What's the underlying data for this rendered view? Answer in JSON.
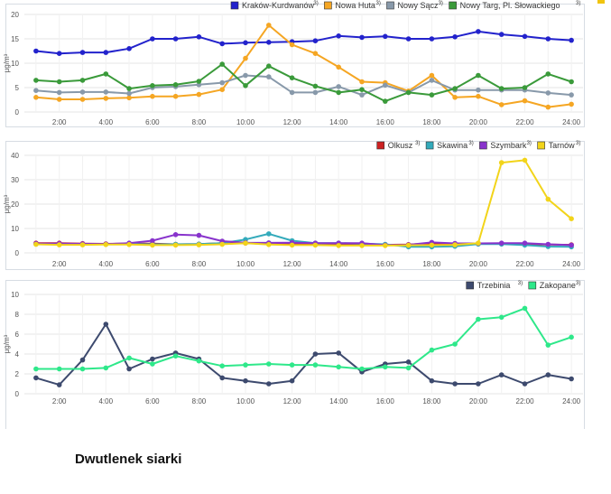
{
  "caption": "Dwutlenek siarki",
  "x_ticks": [
    "2:00",
    "4:00",
    "6:00",
    "8:00",
    "10:00",
    "12:00",
    "14:00",
    "16:00",
    "18:00",
    "20:00",
    "22:00",
    "24:00"
  ],
  "chart_data": [
    {
      "type": "line",
      "ylabel": "µg/m³",
      "ylim": [
        0,
        20
      ],
      "yticks": [
        0,
        5,
        10,
        15,
        20
      ],
      "xlim": [
        0.5,
        24.5
      ],
      "legend": "top-right",
      "x": [
        1,
        2,
        3,
        4,
        5,
        6,
        7,
        8,
        9,
        10,
        11,
        12,
        13,
        14,
        15,
        16,
        17,
        18,
        19,
        20,
        21,
        22,
        23,
        24
      ],
      "series": [
        {
          "name": "Kraków-Kurdwanów",
          "sup": "3)",
          "color": "#2222cc",
          "values": [
            12.5,
            12.0,
            12.2,
            12.2,
            13.0,
            15.0,
            15.0,
            15.4,
            14.0,
            14.2,
            14.3,
            14.4,
            14.6,
            15.6,
            15.3,
            15.5,
            15.0,
            15.0,
            15.4,
            16.5,
            15.9,
            15.5,
            15.0,
            14.7
          ]
        },
        {
          "name": "Nowa Huta",
          "sup": "3)",
          "color": "#f5a623",
          "values": [
            3.0,
            2.6,
            2.6,
            2.8,
            2.9,
            3.2,
            3.2,
            3.6,
            4.6,
            11.0,
            17.8,
            13.8,
            12.0,
            9.2,
            6.2,
            6.0,
            4.3,
            7.5,
            3.0,
            3.2,
            1.5,
            2.3,
            1.0,
            1.6
          ]
        },
        {
          "name": "Nowy Sącz",
          "sup": "3)",
          "color": "#8899aa",
          "values": [
            4.4,
            4.0,
            4.1,
            4.1,
            3.8,
            5.0,
            5.2,
            5.6,
            6.0,
            7.5,
            7.2,
            4.0,
            4.0,
            5.2,
            3.5,
            5.5,
            4.0,
            6.5,
            4.5,
            4.5,
            4.5,
            4.5,
            3.9,
            3.5
          ]
        },
        {
          "name": "Nowy Targ, Pl. Słowackiego",
          "sup": "3)",
          "color": "#3a9a3a",
          "values": [
            6.5,
            6.2,
            6.5,
            7.8,
            4.8,
            5.4,
            5.6,
            6.3,
            9.8,
            5.4,
            9.4,
            7.0,
            5.3,
            4.0,
            4.6,
            2.2,
            4.0,
            3.5,
            4.8,
            7.5,
            4.8,
            5.0,
            7.8,
            6.2
          ]
        }
      ]
    },
    {
      "type": "line",
      "ylabel": "µg/m³",
      "ylim": [
        0,
        40
      ],
      "yticks": [
        0,
        10,
        20,
        30,
        40
      ],
      "xlim": [
        0.5,
        24.5
      ],
      "legend": "top-right",
      "x": [
        1,
        2,
        3,
        4,
        5,
        6,
        7,
        8,
        9,
        10,
        11,
        12,
        13,
        14,
        15,
        16,
        17,
        18,
        19,
        20,
        21,
        22,
        23,
        24
      ],
      "series": [
        {
          "name": "Olkusz",
          "sup": "3)",
          "color": "#cc2222",
          "values": [
            4.0,
            4.0,
            3.8,
            3.7,
            3.8,
            3.8,
            3.5,
            3.6,
            4.0,
            4.0,
            3.7,
            3.6,
            3.6,
            3.6,
            3.6,
            3.3,
            3.4,
            3.9,
            3.4,
            3.8,
            3.8,
            3.6,
            3.4,
            3.3
          ]
        },
        {
          "name": "Skawina",
          "sup": "3)",
          "color": "#33aabb",
          "values": [
            3.6,
            3.6,
            3.6,
            3.5,
            3.6,
            3.5,
            3.5,
            3.6,
            4.0,
            5.5,
            7.8,
            5.0,
            4.0,
            4.0,
            3.8,
            3.5,
            2.5,
            2.5,
            2.7,
            3.6,
            3.6,
            3.2,
            2.6,
            2.5
          ]
        },
        {
          "name": "Szymbark",
          "sup": "3)",
          "color": "#8833cc",
          "values": [
            3.8,
            3.8,
            3.7,
            3.6,
            4.0,
            5.0,
            7.5,
            7.2,
            4.8,
            4.2,
            4.1,
            4.2,
            4.0,
            4.0,
            4.0,
            3.2,
            3.3,
            4.3,
            3.9,
            3.9,
            4.0,
            4.0,
            3.5,
            3.2
          ]
        },
        {
          "name": "Tarnów",
          "sup": "3)",
          "color": "#f2d41a",
          "values": [
            3.5,
            3.3,
            3.3,
            3.4,
            3.4,
            3.2,
            3.2,
            3.3,
            3.5,
            4.0,
            3.4,
            3.2,
            3.2,
            3.0,
            3.0,
            3.0,
            3.1,
            3.2,
            3.3,
            4.0,
            37.0,
            38.0,
            22.0,
            14.0
          ]
        }
      ]
    },
    {
      "type": "line",
      "ylabel": "µg/m³",
      "ylim": [
        0,
        10
      ],
      "yticks": [
        0,
        2,
        4,
        6,
        8,
        10
      ],
      "xlim": [
        0.5,
        24.5
      ],
      "legend": "top-right",
      "x": [
        1,
        2,
        3,
        4,
        5,
        6,
        7,
        8,
        9,
        10,
        11,
        12,
        13,
        14,
        15,
        16,
        17,
        18,
        19,
        20,
        21,
        22,
        23,
        24
      ],
      "series": [
        {
          "name": "Trzebinia",
          "sup": "3)",
          "color": "#3d4a6e",
          "values": [
            1.6,
            0.9,
            3.4,
            7.0,
            2.5,
            3.5,
            4.1,
            3.5,
            1.6,
            1.3,
            1.0,
            1.3,
            4.0,
            4.1,
            2.2,
            3.0,
            3.2,
            1.3,
            1.0,
            1.0,
            1.9,
            1.0,
            1.9,
            1.5
          ]
        },
        {
          "name": "Zakopane",
          "sup": "3)",
          "color": "#2ee88a",
          "values": [
            2.5,
            2.5,
            2.5,
            2.6,
            3.6,
            3.0,
            3.8,
            3.3,
            2.8,
            2.9,
            3.0,
            2.9,
            2.9,
            2.7,
            2.5,
            2.7,
            2.6,
            4.4,
            5.0,
            7.5,
            7.7,
            8.6,
            4.9,
            5.7
          ]
        }
      ]
    }
  ]
}
